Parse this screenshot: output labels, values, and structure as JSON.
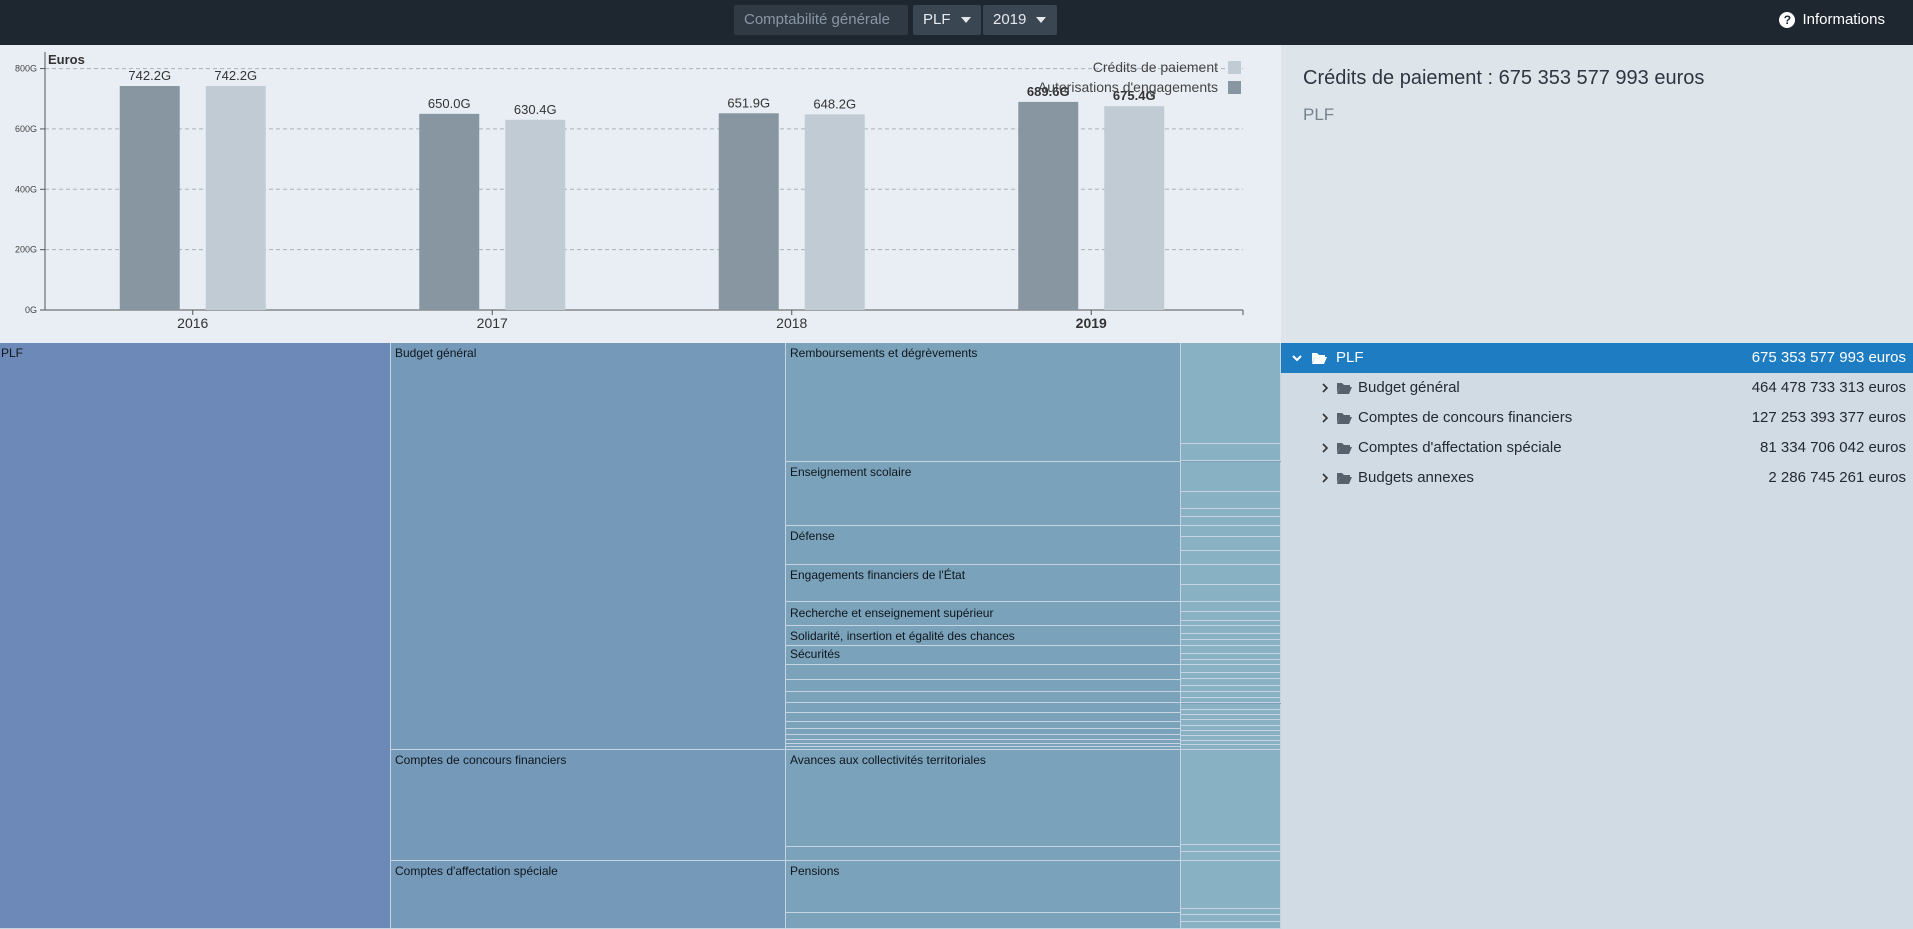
{
  "topbar": {
    "accounting_label": "Comptabilité générale",
    "budget_label": "PLF",
    "year_label": "2019",
    "info_label": "Informations"
  },
  "chart_data": {
    "type": "bar",
    "ylabel": "Euros",
    "categories": [
      "2016",
      "2017",
      "2018",
      "2019"
    ],
    "highlighted_category": "2019",
    "series": [
      {
        "name": "Autorisations d'engagements",
        "color": "#8896a1",
        "values": [
          742.2,
          650.0,
          651.9,
          689.6
        ],
        "labels": [
          "742.2G",
          "650.0G",
          "651.9G",
          "689.6G"
        ]
      },
      {
        "name": "Crédits de paiement",
        "color": "#c0cbd3",
        "values": [
          742.2,
          630.4,
          648.2,
          675.4
        ],
        "labels": [
          "742.2G",
          "630.4G",
          "648.2G",
          "675.4G"
        ]
      }
    ],
    "legend_order": [
      "Crédits de paiement",
      "Autorisations d'engagements"
    ],
    "legend_position": "top-right",
    "yticks": [
      0,
      200,
      400,
      600,
      800
    ],
    "ytick_labels": [
      "0G",
      "200G",
      "400G",
      "600G",
      "800G"
    ],
    "ylim": [
      0,
      845
    ],
    "grid": "horizontal dashed"
  },
  "summary": {
    "title": "Crédits de paiement : 675 353 577 993 euros",
    "subtitle": "PLF"
  },
  "treemap": {
    "root": "PLF",
    "budgets": [
      "Budget général",
      "Comptes de concours financiers",
      "Comptes d'affectation spéciale"
    ],
    "missions": [
      "Remboursements et dégrèvements",
      "Enseignement scolaire",
      "Défense",
      "Engagements financiers de l'État",
      "Recherche et enseignement supérieur",
      "Solidarité, insertion et égalité des chances",
      "Sécurités",
      "Avances aux collectivités territoriales",
      "Pensions"
    ],
    "colors": {
      "level0": "#6d89b7",
      "level1": "#7499b9",
      "level2": "#7aa2ba",
      "level3": "#88b2c3",
      "border": "#c6d4e1"
    }
  },
  "tree": {
    "root": {
      "name": "PLF",
      "value": "675 353 577 993 euros"
    },
    "children": [
      {
        "name": "Budget général",
        "value": "464 478 733 313 euros"
      },
      {
        "name": "Comptes de concours financiers",
        "value": "127 253 393 377 euros"
      },
      {
        "name": "Comptes d'affectation spéciale",
        "value": "81 334 706 042 euros"
      },
      {
        "name": "Budgets annexes",
        "value": "2 286 745 261 euros"
      }
    ]
  }
}
